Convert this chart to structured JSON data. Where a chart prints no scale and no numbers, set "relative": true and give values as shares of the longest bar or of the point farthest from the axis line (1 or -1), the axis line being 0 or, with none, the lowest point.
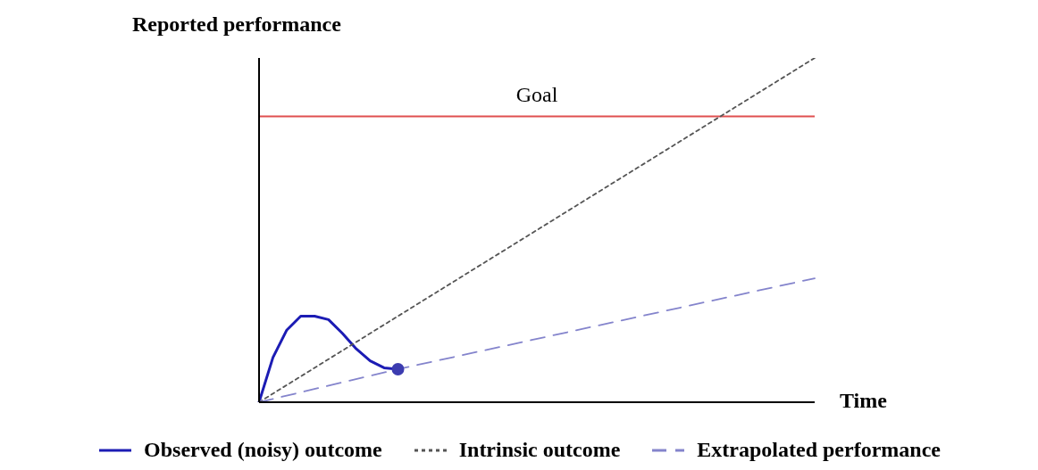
{
  "chart_data": {
    "type": "line",
    "relative": true,
    "xlabel": "Time",
    "ylabel": "Reported performance",
    "categories": [
      null,
      null,
      null,
      null,
      null,
      null,
      null,
      null,
      null,
      null,
      null,
      null,
      null,
      null,
      null,
      null,
      null,
      null,
      null,
      null,
      null,
      null,
      null,
      null,
      null,
      null,
      null,
      null,
      null,
      null,
      null,
      null,
      null,
      null,
      null,
      null,
      null,
      null,
      null,
      null,
      null
    ],
    "series": [
      {
        "name": "Observed (noisy) outcome",
        "color": "#1c1cb4",
        "line_style": "solid",
        "values": [
          0,
          0.13,
          0.21,
          0.25,
          0.25,
          0.24,
          0.2,
          0.155,
          0.12,
          0.1,
          0.096,
          null,
          null,
          null,
          null,
          null,
          null,
          null,
          null,
          null,
          null,
          null,
          null,
          null,
          null,
          null,
          null,
          null,
          null,
          null,
          null,
          null,
          null,
          null,
          null,
          null,
          null,
          null,
          null,
          null,
          null
        ]
      },
      {
        "name": "Intrinsic outcome",
        "color": "#555555",
        "line_style": "dotted",
        "values": [
          0,
          null,
          null,
          null,
          null,
          null,
          null,
          null,
          null,
          null,
          null,
          null,
          null,
          null,
          null,
          null,
          null,
          null,
          null,
          null,
          null,
          null,
          null,
          null,
          null,
          null,
          null,
          null,
          null,
          null,
          null,
          null,
          null,
          null,
          null,
          null,
          null,
          null,
          null,
          null,
          1
        ]
      },
      {
        "name": "Extrapolated performance",
        "color": "#8484cc",
        "line_style": "dashed",
        "values": [
          0,
          null,
          null,
          null,
          null,
          null,
          null,
          null,
          null,
          null,
          0.096,
          null,
          null,
          null,
          null,
          null,
          null,
          null,
          null,
          null,
          null,
          null,
          null,
          null,
          null,
          null,
          null,
          null,
          null,
          null,
          null,
          null,
          null,
          null,
          null,
          null,
          null,
          null,
          null,
          null,
          0.36
        ]
      },
      {
        "type": "line",
        "color": "#3c3cb0",
        "marker": "circle",
        "values": [
          null,
          null,
          null,
          null,
          null,
          null,
          null,
          null,
          null,
          null,
          0.096,
          null,
          null,
          null,
          null,
          null,
          null,
          null,
          null,
          null,
          null,
          null,
          null,
          null,
          null,
          null,
          null,
          null,
          null,
          null,
          null,
          null,
          null,
          null,
          null,
          null,
          null,
          null,
          null,
          null,
          null
        ]
      }
    ],
    "ref_lines": [
      {
        "axis": "y",
        "value": 0.83,
        "label": "Goal",
        "color": "#e05050"
      }
    ],
    "legend": "bottom",
    "grid": false
  }
}
